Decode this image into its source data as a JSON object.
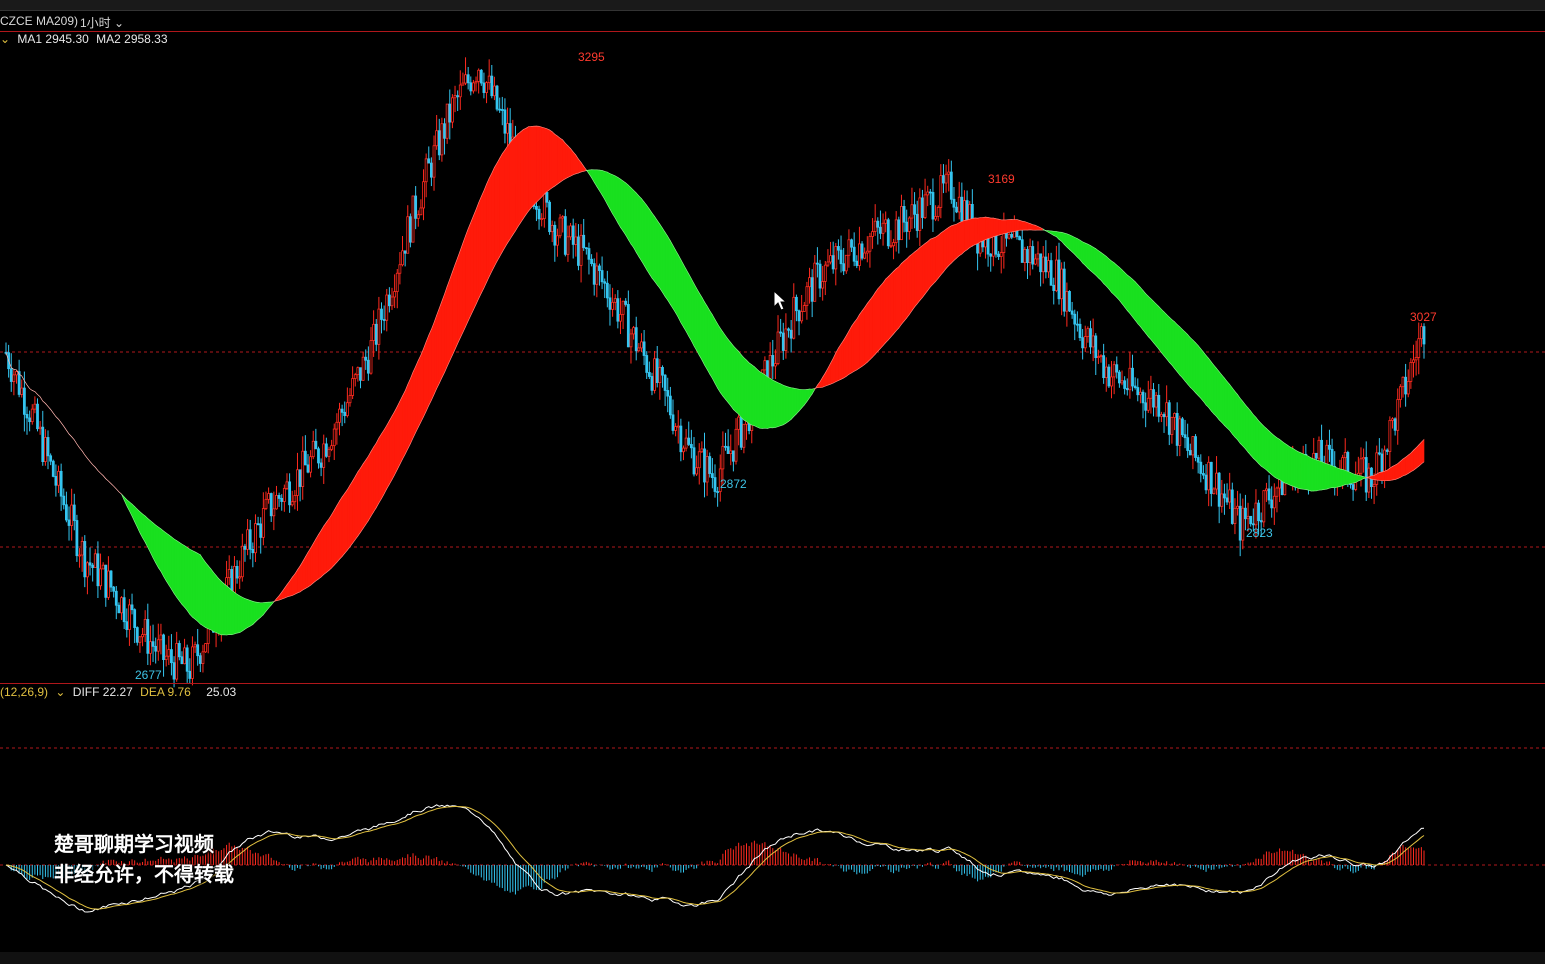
{
  "window": {
    "symbol": "CZCE MA209)",
    "timeframe": "1小时"
  },
  "main_indicator": {
    "ma1": "MA1 2945.30",
    "ma2": "MA2 2958.33"
  },
  "macd_indicator": {
    "params": "(12,26,9)",
    "diff": "DIFF 22.27",
    "dea": "DEA 9.76",
    "macd": "25.03"
  },
  "price_labels": {
    "high1": "3295",
    "high2": "3169",
    "high3": "3027",
    "low1": "2677",
    "low2": "2872",
    "low3": "2823"
  },
  "watermark": {
    "line1": "楚哥聊期学习视频",
    "line2": "非经允许，不得转载"
  },
  "colors": {
    "up": "#ff2a1f",
    "down": "#34c5f0",
    "band_up": "#ff1a0a",
    "band_down": "#19e01f",
    "grid": "#b0171b"
  },
  "chart_data": {
    "type": "line",
    "title": "",
    "price_axis_labels_shown": [
      3295,
      3169,
      3027,
      2677,
      2872,
      2823
    ],
    "series": [
      {
        "name": "MA1",
        "last": 2945.3
      },
      {
        "name": "MA2",
        "last": 2958.33
      },
      {
        "name": "DIFF",
        "last": 22.27
      },
      {
        "name": "DEA",
        "last": 9.76
      },
      {
        "name": "MACD",
        "last": 25.03
      }
    ],
    "price_path": [
      [
        0,
        3000
      ],
      [
        10,
        2935
      ],
      [
        20,
        2860
      ],
      [
        30,
        2790
      ],
      [
        40,
        2760
      ],
      [
        50,
        2720
      ],
      [
        60,
        2688
      ],
      [
        70,
        2677
      ],
      [
        80,
        2730
      ],
      [
        90,
        2790
      ],
      [
        100,
        2840
      ],
      [
        110,
        2870
      ],
      [
        120,
        2900
      ],
      [
        130,
        2950
      ],
      [
        140,
        3010
      ],
      [
        150,
        3100
      ],
      [
        160,
        3180
      ],
      [
        170,
        3250
      ],
      [
        180,
        3295
      ],
      [
        190,
        3230
      ],
      [
        200,
        3170
      ],
      [
        210,
        3125
      ],
      [
        220,
        3100
      ],
      [
        230,
        3060
      ],
      [
        240,
        3010
      ],
      [
        250,
        2960
      ],
      [
        260,
        2900
      ],
      [
        270,
        2872
      ],
      [
        280,
        2920
      ],
      [
        290,
        2980
      ],
      [
        300,
        3040
      ],
      [
        310,
        3080
      ],
      [
        320,
        3100
      ],
      [
        330,
        3120
      ],
      [
        340,
        3130
      ],
      [
        350,
        3150
      ],
      [
        360,
        3169
      ],
      [
        370,
        3120
      ],
      [
        380,
        3110
      ],
      [
        390,
        3100
      ],
      [
        400,
        3080
      ],
      [
        410,
        3020
      ],
      [
        420,
        2980
      ],
      [
        430,
        2960
      ],
      [
        440,
        2950
      ],
      [
        450,
        2900
      ],
      [
        460,
        2870
      ],
      [
        470,
        2823
      ],
      [
        480,
        2850
      ],
      [
        490,
        2880
      ],
      [
        500,
        2890
      ],
      [
        510,
        2880
      ],
      [
        520,
        2870
      ],
      [
        530,
        2940
      ],
      [
        540,
        3027
      ]
    ]
  }
}
